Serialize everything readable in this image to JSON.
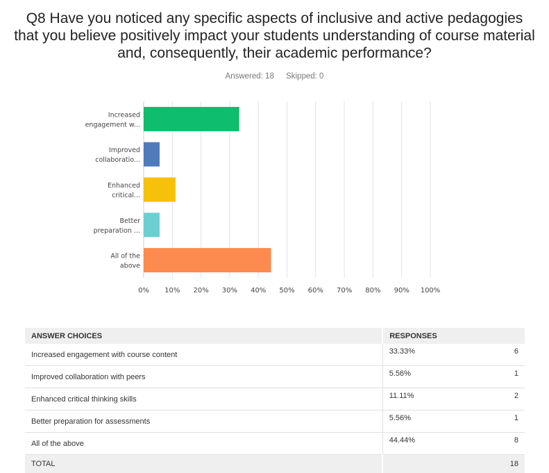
{
  "question": {
    "title": "Q8 Have you noticed any specific aspects of inclusive and active pedagogies that you believe positively impact your students understanding of course material and, consequently, their academic performance?",
    "answered": "Answered: 18",
    "skipped": "Skipped: 0"
  },
  "chart_data": {
    "type": "bar",
    "orientation": "horizontal",
    "categories": [
      [
        "Increased",
        "engagement w..."
      ],
      [
        "Improved",
        "collaboratio..."
      ],
      [
        "Enhanced",
        "critical..."
      ],
      [
        "Better",
        "preparation ..."
      ],
      [
        "All of the",
        "above"
      ]
    ],
    "values": [
      33.33,
      5.56,
      11.11,
      5.56,
      44.44
    ],
    "colors": [
      "#0fbd6e",
      "#4f7bbd",
      "#f5c10a",
      "#6bcfd0",
      "#fd8a4e"
    ],
    "xlim": [
      0,
      100
    ],
    "xticks": [
      "0%",
      "10%",
      "20%",
      "30%",
      "40%",
      "50%",
      "60%",
      "70%",
      "80%",
      "90%",
      "100%"
    ],
    "grid": true
  },
  "table": {
    "headers": [
      "ANSWER CHOICES",
      "RESPONSES"
    ],
    "rows": [
      {
        "choice": "Increased engagement with course content",
        "percent": "33.33%",
        "count": "6"
      },
      {
        "choice": "Improved collaboration with peers",
        "percent": "5.56%",
        "count": "1"
      },
      {
        "choice": "Enhanced critical thinking skills",
        "percent": "11.11%",
        "count": "2"
      },
      {
        "choice": "Better preparation for assessments",
        "percent": "5.56%",
        "count": "1"
      },
      {
        "choice": "All of the above",
        "percent": "44.44%",
        "count": "8"
      }
    ],
    "total_label": "TOTAL",
    "total_count": "18"
  }
}
